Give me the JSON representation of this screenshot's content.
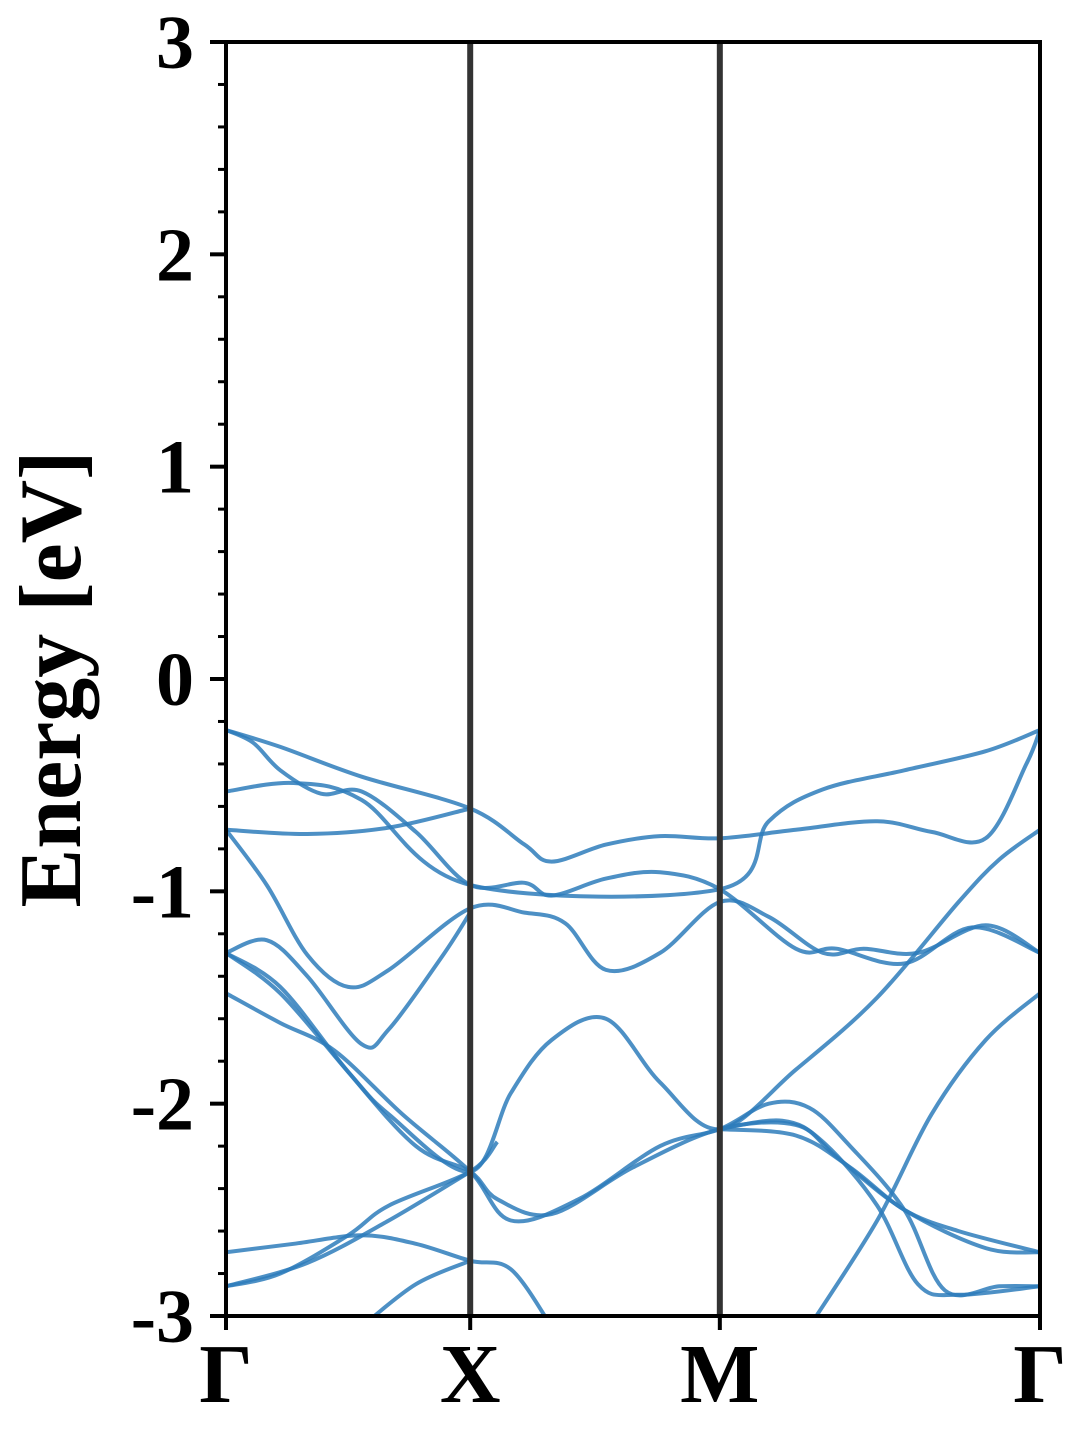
{
  "chart_data": {
    "type": "line",
    "ylabel": "Energy [eV]",
    "xlabel": "",
    "ylim": [
      -3,
      3
    ],
    "yticks": [
      -3,
      -2,
      -1,
      0,
      1,
      2,
      3
    ],
    "y_minor_step": 0.2,
    "xlim": [
      0,
      3.0
    ],
    "kpoints": [
      {
        "label": "Γ",
        "x": 0
      },
      {
        "label": "X",
        "x": 0.9
      },
      {
        "label": "M",
        "x": 1.82
      },
      {
        "label": "Γ",
        "x": 3.0
      }
    ],
    "grid": false,
    "line_color": "#2e7dbb",
    "kpoint_line_color": "#333333",
    "series": [
      {
        "values": [
          [
            0,
            -0.24
          ],
          [
            0.2,
            -0.32
          ],
          [
            0.5,
            -0.46
          ],
          [
            0.9,
            -0.61
          ],
          [
            1.1,
            -0.78
          ],
          [
            1.2,
            -0.86
          ],
          [
            1.4,
            -0.78
          ],
          [
            1.6,
            -0.74
          ],
          [
            1.82,
            -0.75
          ],
          [
            2.1,
            -0.71
          ],
          [
            2.4,
            -0.67
          ],
          [
            2.6,
            -0.72
          ],
          [
            2.8,
            -0.75
          ],
          [
            2.95,
            -0.4
          ],
          [
            3.0,
            -0.24
          ]
        ]
      },
      {
        "values": [
          [
            0,
            -0.24
          ],
          [
            0.1,
            -0.3
          ],
          [
            0.2,
            -0.43
          ],
          [
            0.35,
            -0.54
          ],
          [
            0.5,
            -0.53
          ],
          [
            0.7,
            -0.72
          ],
          [
            0.9,
            -0.97
          ],
          [
            1.1,
            -0.96
          ],
          [
            1.2,
            -1.02
          ],
          [
            1.4,
            -0.94
          ],
          [
            1.6,
            -0.91
          ],
          [
            1.82,
            -0.99
          ],
          [
            2.1,
            -1.27
          ],
          [
            2.25,
            -1.27
          ],
          [
            2.5,
            -1.34
          ],
          [
            2.75,
            -1.17
          ],
          [
            3.0,
            -1.29
          ]
        ]
      },
      {
        "values": [
          [
            0,
            -0.53
          ],
          [
            0.25,
            -0.49
          ],
          [
            0.5,
            -0.57
          ],
          [
            0.9,
            -0.97
          ],
          [
            1.82,
            -0.99
          ],
          [
            2.0,
            -0.67
          ],
          [
            2.2,
            -0.52
          ],
          [
            2.5,
            -0.43
          ],
          [
            2.8,
            -0.34
          ],
          [
            3.0,
            -0.24
          ]
        ]
      },
      {
        "values": [
          [
            0,
            -0.71
          ],
          [
            0.3,
            -0.73
          ],
          [
            0.6,
            -0.7
          ],
          [
            0.9,
            -0.61
          ]
        ]
      },
      {
        "values": [
          [
            0,
            -0.71
          ],
          [
            0.15,
            -0.97
          ],
          [
            0.3,
            -1.3
          ],
          [
            0.45,
            -1.45
          ],
          [
            0.6,
            -1.37
          ],
          [
            0.9,
            -1.08
          ],
          [
            1.1,
            -1.1
          ],
          [
            1.25,
            -1.15
          ],
          [
            1.4,
            -1.37
          ],
          [
            1.6,
            -1.29
          ],
          [
            1.82,
            -1.05
          ],
          [
            2.0,
            -1.12
          ],
          [
            2.2,
            -1.29
          ],
          [
            2.35,
            -1.27
          ],
          [
            2.55,
            -1.29
          ],
          [
            2.8,
            -1.16
          ],
          [
            3.0,
            -1.29
          ]
        ]
      },
      {
        "values": [
          [
            0,
            -1.29
          ],
          [
            0.15,
            -1.23
          ],
          [
            0.3,
            -1.4
          ],
          [
            0.5,
            -1.72
          ],
          [
            0.6,
            -1.65
          ],
          [
            0.8,
            -1.3
          ],
          [
            0.9,
            -1.1
          ]
        ]
      },
      {
        "values": [
          [
            0,
            -1.29
          ],
          [
            0.2,
            -1.48
          ],
          [
            0.45,
            -1.85
          ],
          [
            0.6,
            -2.05
          ],
          [
            0.9,
            -2.32
          ],
          [
            1.05,
            -1.95
          ],
          [
            1.2,
            -1.7
          ],
          [
            1.4,
            -1.6
          ],
          [
            1.6,
            -1.9
          ],
          [
            1.82,
            -2.12
          ],
          [
            2.1,
            -1.84
          ],
          [
            2.4,
            -1.5
          ],
          [
            2.7,
            -1.05
          ],
          [
            2.85,
            -0.85
          ],
          [
            3.0,
            -0.71
          ]
        ]
      },
      {
        "values": [
          [
            0,
            -1.48
          ],
          [
            0.2,
            -1.62
          ],
          [
            0.4,
            -1.75
          ],
          [
            0.65,
            -2.05
          ],
          [
            0.9,
            -2.32
          ],
          [
            1.05,
            -2.55
          ],
          [
            1.3,
            -2.45
          ],
          [
            1.6,
            -2.2
          ],
          [
            1.82,
            -2.12
          ],
          [
            2.0,
            -2.0
          ],
          [
            2.15,
            -2.02
          ],
          [
            2.3,
            -2.2
          ],
          [
            2.5,
            -2.5
          ],
          [
            2.65,
            -2.88
          ],
          [
            2.85,
            -2.86
          ],
          [
            3.0,
            -2.86
          ]
        ]
      },
      {
        "values": [
          [
            0,
            -1.29
          ],
          [
            0.2,
            -1.45
          ],
          [
            0.45,
            -1.85
          ],
          [
            0.7,
            -2.2
          ],
          [
            0.9,
            -2.32
          ],
          [
            1.0,
            -2.45
          ],
          [
            1.2,
            -2.52
          ],
          [
            1.5,
            -2.3
          ],
          [
            1.82,
            -2.12
          ],
          [
            2.1,
            -2.1
          ],
          [
            2.25,
            -2.25
          ],
          [
            2.5,
            -2.5
          ],
          [
            2.8,
            -2.68
          ],
          [
            3.0,
            -2.7
          ]
        ]
      },
      {
        "values": [
          [
            0,
            -2.7
          ],
          [
            0.25,
            -2.66
          ],
          [
            0.5,
            -2.62
          ],
          [
            0.7,
            -2.66
          ],
          [
            0.9,
            -2.74
          ],
          [
            1.05,
            -2.78
          ],
          [
            1.2,
            -3.05
          ]
        ]
      },
      {
        "values": [
          [
            0,
            -2.86
          ],
          [
            0.2,
            -2.8
          ],
          [
            0.45,
            -2.62
          ],
          [
            0.6,
            -2.48
          ],
          [
            0.9,
            -2.32
          ],
          [
            1.0,
            -2.18
          ]
        ]
      },
      {
        "values": [
          [
            0,
            -2.86
          ],
          [
            0.3,
            -2.75
          ],
          [
            0.6,
            -2.55
          ],
          [
            0.9,
            -2.32
          ]
        ]
      },
      {
        "values": [
          [
            0.5,
            -3.05
          ],
          [
            0.7,
            -2.85
          ],
          [
            0.9,
            -2.74
          ]
        ]
      },
      {
        "values": [
          [
            2.15,
            -3.05
          ],
          [
            2.4,
            -2.55
          ],
          [
            2.6,
            -2.05
          ],
          [
            2.8,
            -1.7
          ],
          [
            3.0,
            -1.48
          ]
        ]
      },
      {
        "values": [
          [
            1.82,
            -2.12
          ],
          [
            2.1,
            -2.15
          ],
          [
            2.3,
            -2.3
          ],
          [
            2.5,
            -2.5
          ],
          [
            2.7,
            -2.6
          ],
          [
            3.0,
            -2.7
          ]
        ]
      },
      {
        "values": [
          [
            1.82,
            -2.12
          ],
          [
            2.05,
            -2.08
          ],
          [
            2.2,
            -2.18
          ],
          [
            2.4,
            -2.48
          ],
          [
            2.55,
            -2.85
          ],
          [
            2.7,
            -2.9
          ],
          [
            3.0,
            -2.86
          ]
        ]
      }
    ]
  }
}
